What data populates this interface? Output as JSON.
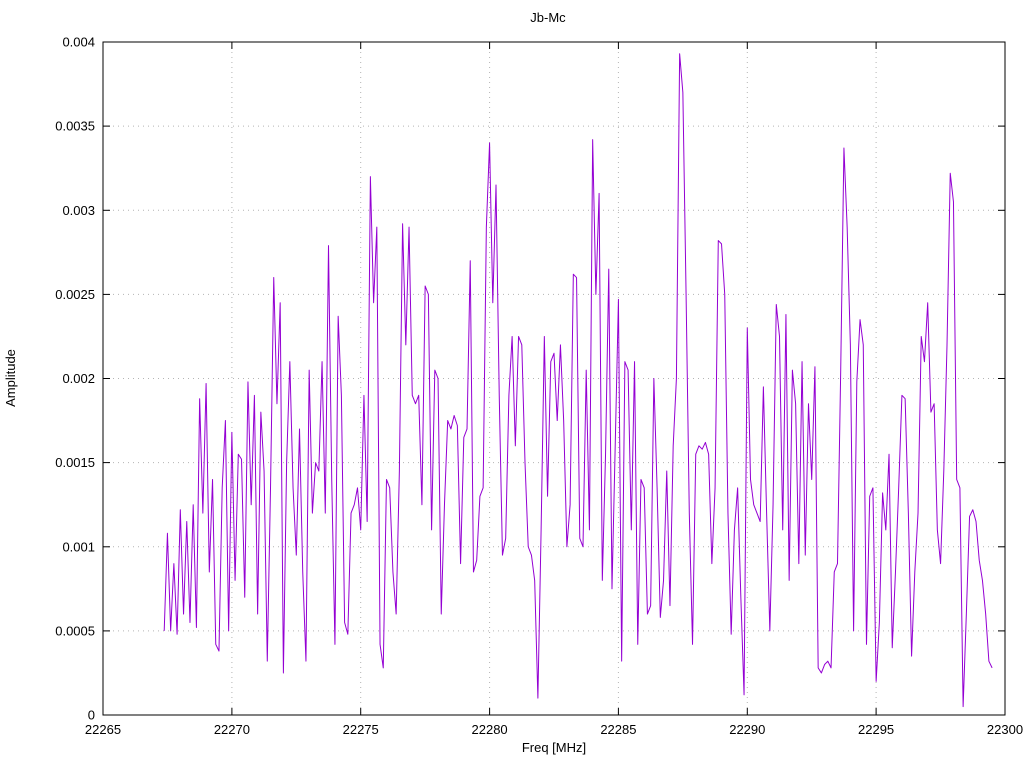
{
  "chart": {
    "title": "Jb-Mc",
    "xlabel": "Freq [MHz]",
    "ylabel": "Amplitude"
  },
  "chart_data": {
    "type": "line",
    "title": "Jb-Mc",
    "xlabel": "Freq [MHz]",
    "ylabel": "Amplitude",
    "xlim": [
      22265,
      22300
    ],
    "ylim": [
      0,
      0.004
    ],
    "x_ticks": [
      22265,
      22270,
      22275,
      22280,
      22285,
      22290,
      22295,
      22300
    ],
    "x_tick_labels": [
      "22265",
      "22270",
      "22275",
      "22280",
      "22285",
      "22290",
      "22295",
      "22300"
    ],
    "y_ticks": [
      0,
      0.0005,
      0.001,
      0.0015,
      0.002,
      0.0025,
      0.003,
      0.0035,
      0.004
    ],
    "y_tick_labels": [
      "0",
      "0.0005",
      "0.001",
      "0.0015",
      "0.002",
      "0.0025",
      "0.003",
      "0.0035",
      "0.004"
    ],
    "grid": true,
    "grid_style": "dotted",
    "legend": "none",
    "line_color": "#9400d3",
    "grid_color": "#b4b4b4",
    "border_color": "#000000",
    "series": [
      {
        "name": "Jb-Mc",
        "x_start": 22267.375,
        "x_step": 0.125,
        "y": [
          0.0005,
          0.00108,
          0.0005,
          0.0009,
          0.00048,
          0.00122,
          0.0006,
          0.00115,
          0.00055,
          0.00125,
          0.00052,
          0.00188,
          0.0012,
          0.00197,
          0.00085,
          0.0014,
          0.00042,
          0.00038,
          0.00135,
          0.00175,
          0.0005,
          0.00168,
          0.0008,
          0.00155,
          0.00152,
          0.0007,
          0.00198,
          0.00125,
          0.0019,
          0.0006,
          0.0018,
          0.00145,
          0.00032,
          0.00135,
          0.0026,
          0.00185,
          0.00245,
          0.00025,
          0.0015,
          0.0021,
          0.00135,
          0.00095,
          0.0017,
          0.00085,
          0.00032,
          0.00205,
          0.0012,
          0.0015,
          0.00145,
          0.0021,
          0.0012,
          0.00279,
          0.0014,
          0.00042,
          0.00237,
          0.0019,
          0.00055,
          0.00048,
          0.0012,
          0.00125,
          0.00135,
          0.0011,
          0.0019,
          0.00115,
          0.0032,
          0.00245,
          0.0029,
          0.00042,
          0.00028,
          0.0014,
          0.00135,
          0.00085,
          0.0006,
          0.00145,
          0.00292,
          0.0022,
          0.0029,
          0.0019,
          0.00185,
          0.0019,
          0.00125,
          0.00255,
          0.0025,
          0.0011,
          0.00205,
          0.002,
          0.0006,
          0.00125,
          0.00175,
          0.0017,
          0.00178,
          0.00172,
          0.0009,
          0.00165,
          0.0017,
          0.0027,
          0.00085,
          0.00092,
          0.0013,
          0.00135,
          0.0029,
          0.0034,
          0.00245,
          0.00315,
          0.0019,
          0.00095,
          0.00105,
          0.0019,
          0.00225,
          0.0016,
          0.00225,
          0.0022,
          0.0015,
          0.001,
          0.00095,
          0.0008,
          0.0001,
          0.0011,
          0.00225,
          0.0013,
          0.0021,
          0.00215,
          0.00175,
          0.0022,
          0.00175,
          0.001,
          0.00125,
          0.00262,
          0.0026,
          0.00105,
          0.001,
          0.00205,
          0.0011,
          0.00342,
          0.0025,
          0.0031,
          0.0008,
          0.00155,
          0.00265,
          0.00075,
          0.0016,
          0.00247,
          0.00032,
          0.0021,
          0.00205,
          0.0011,
          0.0021,
          0.00042,
          0.0014,
          0.00135,
          0.0006,
          0.00065,
          0.002,
          0.00135,
          0.00058,
          0.0008,
          0.00145,
          0.00065,
          0.0016,
          0.002,
          0.00393,
          0.0037,
          0.0025,
          0.0012,
          0.00042,
          0.00155,
          0.0016,
          0.00158,
          0.00162,
          0.00155,
          0.0009,
          0.00135,
          0.00282,
          0.0028,
          0.0025,
          0.0012,
          0.00048,
          0.0011,
          0.00135,
          0.0007,
          0.00012,
          0.0023,
          0.0014,
          0.00125,
          0.0012,
          0.00115,
          0.00195,
          0.0012,
          0.0005,
          0.00125,
          0.00244,
          0.00225,
          0.0011,
          0.00238,
          0.0008,
          0.00205,
          0.00185,
          0.0009,
          0.0021,
          0.00095,
          0.00185,
          0.0014,
          0.00207,
          0.00028,
          0.00025,
          0.0003,
          0.00032,
          0.00028,
          0.00085,
          0.0009,
          0.00205,
          0.00337,
          0.0029,
          0.0022,
          0.0005,
          0.00198,
          0.00235,
          0.0022,
          0.00042,
          0.0013,
          0.00135,
          0.0002,
          0.00055,
          0.00132,
          0.0011,
          0.00155,
          0.0004,
          0.00085,
          0.00135,
          0.0019,
          0.00188,
          0.0012,
          0.00035,
          0.00085,
          0.0012,
          0.00225,
          0.0021,
          0.00245,
          0.0018,
          0.00185,
          0.0011,
          0.0009,
          0.00145,
          0.0022,
          0.00322,
          0.00305,
          0.0014,
          0.00135,
          5e-05,
          0.0006,
          0.00118,
          0.00122,
          0.00115,
          0.00092,
          0.0008,
          0.0006,
          0.00032,
          0.00028
        ]
      }
    ]
  }
}
